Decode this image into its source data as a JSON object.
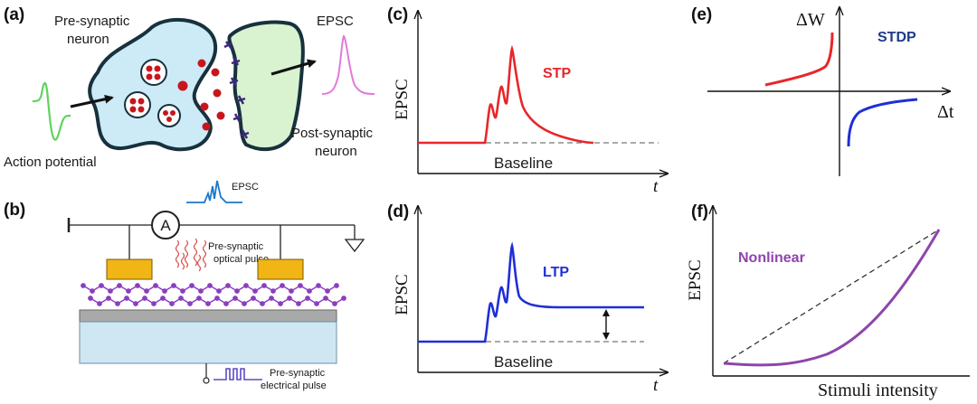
{
  "panels": {
    "a": {
      "tag": "(a)",
      "pre_neuron": [
        "Pre-synaptic",
        "neuron"
      ],
      "post_neuron": [
        "Post-synaptic",
        "neuron"
      ],
      "epsc": "EPSC",
      "action_potential": "Action potential"
    },
    "b": {
      "tag": "(b)",
      "ammeter": "A",
      "epsc": "EPSC",
      "optical_pulse": [
        "Pre-synaptic",
        "optical pulse"
      ],
      "electrical_pulse": [
        "Pre-synaptic",
        "electrical pulse"
      ]
    },
    "c": {
      "tag": "(c)",
      "ylabel": "EPSC",
      "xlabel": "t",
      "curve_label": "STP",
      "baseline": "Baseline"
    },
    "d": {
      "tag": "(d)",
      "ylabel": "EPSC",
      "xlabel": "t",
      "curve_label": "LTP",
      "baseline": "Baseline"
    },
    "e": {
      "tag": "(e)",
      "ylabel": "ΔW",
      "xlabel": "Δt",
      "curve_label": "STDP"
    },
    "f": {
      "tag": "(f)",
      "ylabel": "EPSC",
      "xlabel": "Stimuli intensity",
      "curve_label": "Nonlinear"
    }
  },
  "colors": {
    "stp": "#e8262a",
    "ltp": "#1f2fd6",
    "stdp_label": "#1e3a8a",
    "nonlinear": "#8e44ad",
    "action_potential": "#5fd35f",
    "epsc_pink": "#e27ad8",
    "pre_neuron_fill": "#cdeaf7",
    "post_neuron_fill": "#d9f2d0",
    "vesicle": "#c8161c",
    "electrode": "#f1b515",
    "substrate": "#cfe7f3",
    "dielectric": "#a9a9a9",
    "film": "#8b3fbf"
  }
}
